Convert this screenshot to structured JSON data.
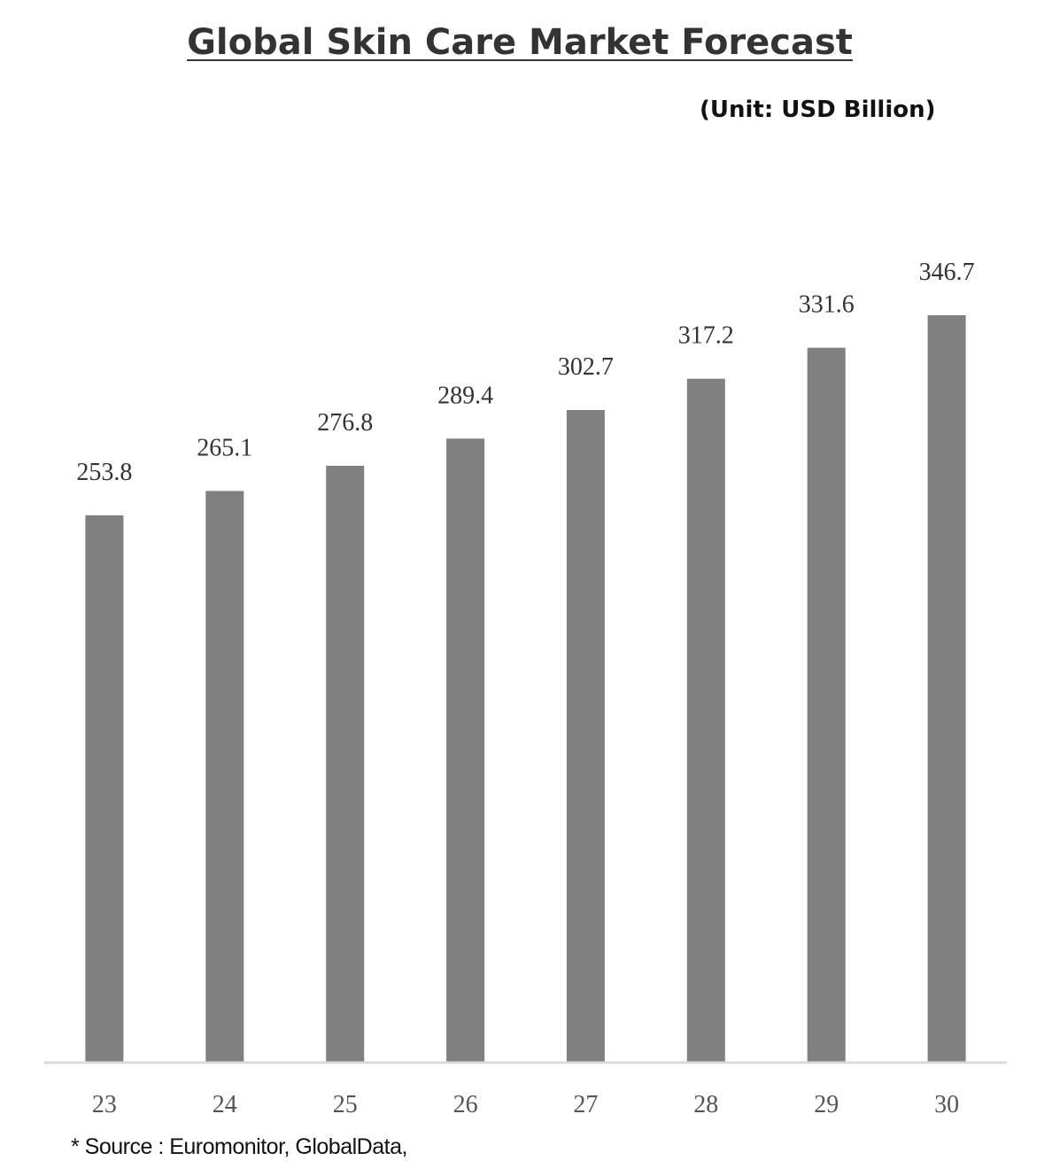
{
  "chart_data": {
    "type": "bar",
    "title": "Global Skin Care Market Forecast",
    "unit_label": "(Unit: USD Billion)",
    "categories": [
      "23",
      "24",
      "25",
      "26",
      "27",
      "28",
      "29",
      "30"
    ],
    "values": [
      253.8,
      265.1,
      276.8,
      289.4,
      302.7,
      317.2,
      331.6,
      346.7
    ],
    "value_labels": [
      "253.8",
      "265.1",
      "276.8",
      "289.4",
      "302.7",
      "317.2",
      "331.6",
      "346.7"
    ],
    "xlabel": "",
    "ylabel": "",
    "ylim": [
      0,
      350
    ],
    "grid": false,
    "legend": "none",
    "bar_color": "#808080",
    "axis_color": "#d9d9d9",
    "label_color": "#333333"
  },
  "footer": {
    "source": "* Source : Euromonitor, GlobalData,"
  }
}
